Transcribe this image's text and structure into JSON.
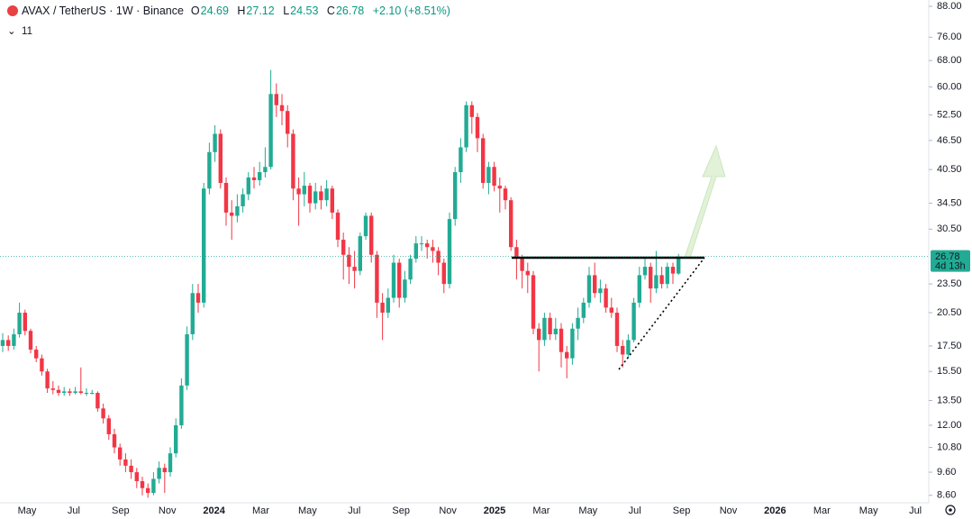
{
  "chart_data": {
    "type": "candlestick",
    "title": "AVAX / TetherUS · 1W · Binance",
    "change": "+2.10 (+8.51%)",
    "indicator_count": "11",
    "ohlc_labels": [
      "O",
      "H",
      "L",
      "C"
    ],
    "countdown": "4d 13h",
    "log_scale": true,
    "grid": false,
    "up_color": "#22ab94",
    "down_color": "#f23645",
    "ylim": [
      8.3,
      90.7
    ],
    "yticks": [
      {
        "value": 88,
        "label": "88.00"
      },
      {
        "value": 76,
        "label": "76.00"
      },
      {
        "value": 68,
        "label": "68.00"
      },
      {
        "value": 60,
        "label": "60.00"
      },
      {
        "value": 52.5,
        "label": "52.50"
      },
      {
        "value": 46.5,
        "label": "46.50"
      },
      {
        "value": 40.5,
        "label": "40.50"
      },
      {
        "value": 34.5,
        "label": "34.50"
      },
      {
        "value": 30.5,
        "label": "30.50"
      },
      {
        "value": 23.5,
        "label": "23.50"
      },
      {
        "value": 20.5,
        "label": "20.50"
      },
      {
        "value": 17.5,
        "label": "17.50"
      },
      {
        "value": 15.5,
        "label": "15.50"
      },
      {
        "value": 13.5,
        "label": "13.50"
      },
      {
        "value": 12,
        "label": "12.00"
      },
      {
        "value": 10.8,
        "label": "10.80"
      },
      {
        "value": 9.6,
        "label": "9.60"
      },
      {
        "value": 8.6,
        "label": "8.60"
      }
    ],
    "x_labels": [
      "May",
      "Jul",
      "Sep",
      "Nov",
      "2024",
      "Mar",
      "May",
      "Jul",
      "Sep",
      "Nov",
      "2025",
      "Mar",
      "May",
      "Jul",
      "Sep",
      "Nov",
      "2026",
      "Mar",
      "May",
      "Jul"
    ],
    "series": [
      {
        "name": "AVAX / TetherUS",
        "open": [
          17.5,
          18.0,
          17.5,
          18.5,
          20.5,
          18.8,
          17.2,
          16.5,
          15.5,
          14.3,
          14.2,
          14.0,
          14.1,
          14.0,
          14.1,
          14.0,
          14.0,
          14.0,
          13.0,
          12.4,
          11.5,
          10.8,
          10.2,
          9.9,
          9.6,
          9.2,
          8.9,
          8.7,
          9.3,
          9.8,
          9.6,
          10.5,
          12.0,
          14.5,
          18.5,
          22.5,
          21.5,
          37.0,
          44.0,
          48.0,
          38.0,
          33.0,
          32.5,
          34.0,
          36.0,
          39.0,
          38.5,
          40.0,
          41.0,
          58.0,
          55.0,
          53.5,
          48.0,
          37.0,
          36.0,
          37.5,
          34.5,
          36.5,
          35.0,
          37.0,
          33.0,
          29.0,
          27.0,
          25.5,
          25.0,
          29.5,
          32.5,
          27.0,
          21.5,
          20.5,
          22.0,
          26.0,
          22.0,
          24.0,
          26.5,
          28.5,
          28.5,
          28.0,
          27.5,
          26.0,
          23.5,
          32.0,
          40.0,
          45.0,
          55.0,
          52.0,
          47.0,
          38.0,
          41.0,
          37.5,
          37.0,
          35.0,
          28.0,
          26.5,
          25.0,
          24.5,
          19.0,
          18.0,
          20.0,
          18.5,
          19.0,
          17.0,
          16.5,
          19.0,
          20.0,
          21.5,
          24.5,
          22.5,
          23.0,
          21.0,
          20.5,
          17.5,
          16.8,
          18.0,
          21.5,
          24.5,
          25.5,
          23.0,
          24.5,
          23.5,
          25.5,
          24.69
        ],
        "high": [
          18.6,
          18.4,
          19.0,
          21.5,
          20.8,
          19.0,
          17.5,
          16.8,
          15.7,
          14.8,
          14.5,
          14.4,
          14.3,
          14.4,
          15.8,
          14.3,
          14.2,
          14.1,
          13.3,
          12.6,
          11.8,
          11.0,
          10.5,
          10.2,
          9.8,
          9.4,
          9.1,
          9.6,
          10.1,
          10.0,
          10.8,
          12.4,
          15.0,
          19.2,
          23.5,
          23.5,
          38.0,
          46.0,
          50.0,
          49.0,
          39.0,
          35.0,
          36.0,
          37.0,
          40.0,
          41.0,
          42.0,
          45.0,
          65.0,
          61.0,
          58.0,
          55.0,
          49.0,
          39.0,
          40.0,
          38.0,
          38.0,
          37.5,
          38.5,
          37.5,
          33.5,
          30.0,
          28.0,
          27.5,
          30.0,
          33.0,
          33.0,
          27.5,
          22.5,
          23.0,
          27.0,
          26.5,
          25.0,
          27.0,
          29.5,
          29.5,
          29.0,
          29.0,
          28.0,
          26.5,
          33.0,
          41.0,
          47.0,
          56.0,
          56.0,
          53.0,
          48.0,
          42.0,
          42.0,
          39.0,
          37.5,
          35.5,
          29.0,
          27.0,
          26.0,
          25.0,
          19.5,
          20.5,
          20.5,
          20.0,
          19.5,
          17.5,
          19.5,
          21.0,
          22.0,
          25.5,
          26.0,
          24.0,
          23.5,
          22.0,
          21.0,
          18.0,
          18.5,
          22.0,
          25.5,
          26.5,
          26.0,
          27.5,
          25.5,
          26.0,
          26.0,
          27.12
        ],
        "low": [
          17.0,
          17.1,
          17.2,
          18.2,
          18.4,
          16.9,
          16.2,
          15.2,
          14.0,
          13.9,
          13.8,
          13.8,
          13.8,
          13.9,
          13.9,
          13.8,
          13.9,
          12.8,
          12.1,
          11.2,
          10.5,
          9.9,
          9.6,
          9.3,
          8.9,
          8.6,
          8.5,
          8.6,
          9.1,
          8.7,
          9.4,
          10.3,
          11.8,
          14.2,
          18.0,
          20.5,
          21.0,
          36.0,
          42.0,
          37.0,
          31.0,
          29.0,
          31.5,
          33.0,
          35.0,
          37.0,
          37.5,
          39.0,
          40.5,
          52.0,
          50.0,
          45.0,
          35.0,
          31.0,
          34.0,
          33.0,
          33.5,
          33.5,
          34.0,
          32.0,
          28.0,
          24.0,
          23.5,
          23.0,
          24.5,
          29.0,
          26.0,
          20.0,
          18.0,
          20.0,
          21.5,
          21.0,
          21.5,
          23.5,
          26.0,
          27.5,
          26.5,
          26.0,
          24.5,
          22.5,
          23.0,
          31.0,
          38.0,
          44.0,
          48.0,
          44.0,
          37.0,
          36.0,
          36.5,
          33.0,
          33.5,
          27.5,
          24.0,
          23.0,
          22.5,
          18.5,
          15.5,
          17.5,
          18.0,
          18.0,
          15.8,
          15.0,
          16.0,
          18.0,
          19.5,
          21.0,
          22.0,
          21.5,
          20.5,
          20.0,
          17.0,
          15.8,
          16.5,
          17.8,
          21.0,
          24.0,
          21.5,
          22.5,
          23.0,
          23.0,
          23.5,
          24.53
        ],
        "close": [
          18.0,
          17.5,
          18.5,
          20.5,
          18.8,
          17.2,
          16.5,
          15.5,
          14.3,
          14.2,
          14.0,
          14.1,
          14.0,
          14.1,
          14.0,
          14.0,
          14.0,
          13.0,
          12.4,
          11.5,
          10.8,
          10.2,
          9.9,
          9.6,
          9.2,
          8.9,
          8.7,
          9.3,
          9.8,
          9.6,
          10.5,
          12.0,
          14.5,
          18.5,
          22.5,
          21.5,
          37.0,
          44.0,
          48.0,
          38.0,
          33.0,
          32.5,
          34.0,
          36.0,
          39.0,
          38.5,
          40.0,
          41.0,
          58.0,
          55.0,
          53.5,
          48.0,
          37.0,
          36.0,
          37.5,
          34.5,
          36.5,
          35.0,
          37.0,
          33.0,
          29.0,
          27.0,
          25.5,
          25.0,
          29.5,
          32.5,
          27.0,
          21.5,
          20.5,
          22.0,
          26.0,
          22.0,
          24.0,
          26.5,
          28.5,
          28.5,
          28.0,
          27.5,
          26.0,
          23.5,
          32.0,
          40.0,
          45.0,
          55.0,
          52.0,
          47.0,
          38.0,
          41.0,
          37.5,
          37.0,
          35.0,
          28.0,
          26.5,
          25.0,
          24.5,
          19.0,
          18.0,
          20.0,
          18.5,
          19.0,
          17.0,
          16.5,
          19.0,
          20.0,
          21.5,
          24.5,
          22.5,
          23.0,
          21.0,
          20.5,
          17.5,
          16.8,
          18.0,
          21.5,
          24.5,
          25.5,
          23.0,
          24.5,
          23.5,
          25.5,
          24.69,
          26.78
        ]
      }
    ]
  }
}
